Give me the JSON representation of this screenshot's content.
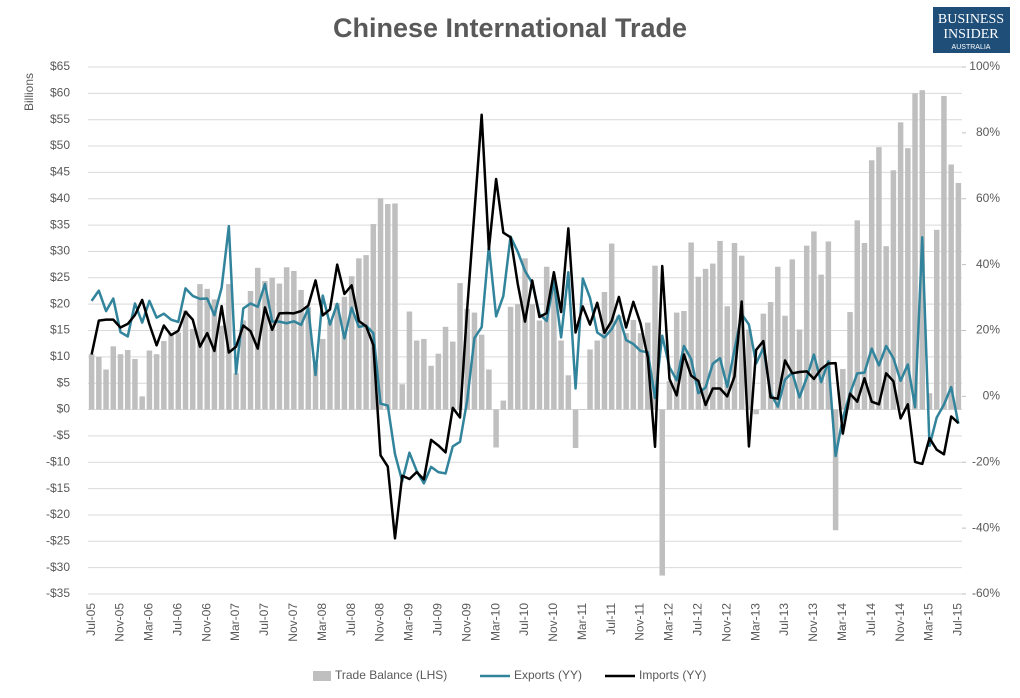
{
  "chart_data": {
    "type": "bar_line",
    "title": "Chinese International Trade",
    "brand": [
      "BUSINESS",
      "INSIDER",
      "AUSTRALIA"
    ],
    "y_label": "Billions",
    "categories": [
      "Jul-05",
      null,
      null,
      null,
      "Nov-05",
      null,
      null,
      null,
      "Mar-06",
      null,
      null,
      null,
      "Jul-06",
      null,
      null,
      null,
      "Nov-06",
      null,
      null,
      null,
      "Mar-07",
      null,
      null,
      null,
      "Jul-07",
      null,
      null,
      null,
      "Nov-07",
      null,
      null,
      null,
      "Mar-08",
      null,
      null,
      null,
      "Jul-08",
      null,
      null,
      null,
      "Nov-08",
      null,
      null,
      null,
      "Mar-09",
      null,
      null,
      null,
      "Jul-09",
      null,
      null,
      null,
      "Nov-09",
      null,
      null,
      null,
      "Mar-10",
      null,
      null,
      null,
      "Jul-10",
      null,
      null,
      null,
      "Nov-10",
      null,
      null,
      null,
      "Mar-11",
      null,
      null,
      null,
      "Jul-11",
      null,
      null,
      null,
      "Nov-11",
      null,
      null,
      null,
      "Mar-12",
      null,
      null,
      null,
      "Jul-12",
      null,
      null,
      null,
      "Nov-12",
      null,
      null,
      null,
      "Mar-13",
      null,
      null,
      null,
      "Jul-13",
      null,
      null,
      null,
      "Nov-13",
      null,
      null,
      null,
      "Mar-14",
      null,
      null,
      null,
      "Jul-14",
      null,
      null,
      null,
      "Nov-14",
      null,
      null,
      null,
      "Mar-15",
      null,
      null,
      null,
      "Jul-15"
    ],
    "series": [
      {
        "name": "Trade Balance (LHS)",
        "kind": "bar",
        "color": "#bfbfbf",
        "values": [
          10.5,
          10.0,
          7.6,
          12.0,
          10.5,
          11.3,
          9.6,
          2.5,
          11.2,
          10.5,
          13.0,
          14.5,
          14.6,
          18.8,
          15.3,
          23.8,
          22.9,
          20.9,
          15.9,
          23.8,
          6.9,
          16.9,
          22.5,
          26.9,
          24.4,
          25.0,
          23.9,
          27.0,
          26.3,
          22.7,
          19.5,
          8.6,
          13.4,
          16.7,
          20.2,
          21.4,
          25.3,
          28.7,
          29.3,
          35.2,
          40.1,
          39.0,
          39.1,
          4.8,
          18.6,
          13.1,
          13.4,
          8.3,
          10.6,
          15.7,
          12.9,
          24.0,
          19.1,
          18.4,
          14.2,
          7.6,
          -7.2,
          1.7,
          19.5,
          20.0,
          28.7,
          20.0,
          16.9,
          27.1,
          22.9,
          13.1,
          6.5,
          -7.3,
          0.1,
          11.4,
          13.1,
          22.3,
          31.5,
          17.8,
          14.5,
          17.0,
          14.5,
          16.5,
          27.3,
          -31.5,
          5.4,
          18.4,
          18.7,
          31.7,
          25.2,
          26.7,
          27.7,
          32.0,
          19.6,
          31.6,
          29.2,
          15.2,
          -0.9,
          18.2,
          20.4,
          27.1,
          17.8,
          28.5,
          15.2,
          31.1,
          33.8,
          25.6,
          31.9,
          -22.9,
          7.7,
          18.5,
          35.9,
          31.6,
          47.3,
          49.8,
          31.0,
          45.4,
          54.5,
          49.6,
          60.0,
          60.6,
          3.1,
          34.1,
          59.5,
          46.5,
          43.0
        ]
      },
      {
        "name": "Exports (YY)",
        "kind": "line",
        "axis": "y2",
        "color": "#31849b",
        "values": [
          29,
          32.1,
          25.9,
          29.7,
          19.5,
          18.2,
          28.2,
          22.4,
          29.0,
          23.9,
          25.1,
          23.3,
          22.6,
          32.8,
          30.5,
          29.6,
          29.7,
          24.6,
          33,
          51.7,
          6.9,
          26.7,
          28.2,
          27.2,
          34.1,
          22.7,
          22.7,
          22.2,
          22.8,
          21.7,
          26.7,
          6.5,
          30.6,
          21.8,
          28.1,
          17.6,
          26.9,
          21.1,
          21.5,
          19.2,
          -2.2,
          -2.8,
          -17.5,
          -25.7,
          -17.1,
          -22.6,
          -26.4,
          -21.4,
          -23.0,
          -23.4,
          -15.2,
          -13.8,
          -1.2,
          17.7,
          21.0,
          45.7,
          24.3,
          30.5,
          48.5,
          43.9,
          38.1,
          34.4,
          25.1,
          22.9,
          34.9,
          17.9,
          37.7,
          2.4,
          35.8,
          29.9,
          19.4,
          17.9,
          20.4,
          24.5,
          17.1,
          15.9,
          13.8,
          13.4,
          -0.5,
          18.4,
          8.9,
          4.9,
          15.3,
          11.3,
          1.0,
          2.7,
          9.9,
          11.6,
          2.9,
          14.1,
          25.0,
          21.8,
          10.0,
          14.7,
          1.0,
          -3.1,
          5.1,
          7.2,
          -0.3,
          5.6,
          12.7,
          4.3,
          10.6,
          -18.1,
          -6.6,
          0.9,
          7.0,
          7.2,
          14.5,
          9.4,
          15.3,
          11.6,
          4.7,
          9.7,
          -3.3,
          48.3,
          -15.0,
          -6.4,
          -2.5,
          2.8,
          -8.3
        ]
      },
      {
        "name": "Imports (YY)",
        "kind": "line",
        "axis": "y2",
        "color": "#000000",
        "values": [
          12.7,
          23.0,
          23.3,
          23.3,
          20.9,
          22.0,
          24.7,
          29.3,
          21.9,
          15.5,
          21.5,
          18.6,
          19.9,
          25.7,
          23.3,
          15.1,
          19.2,
          13.8,
          27.4,
          13.3,
          15.1,
          21.5,
          19.8,
          14.5,
          27.0,
          20.2,
          25.2,
          25.3,
          25.2,
          25.9,
          27.6,
          35.2,
          24.6,
          26.4,
          40.0,
          31.1,
          33.7,
          22.9,
          21.3,
          15.6,
          -17.9,
          -21.3,
          -43.1,
          -24.1,
          -25.1,
          -23.0,
          -25.2,
          -13.2,
          -14.9,
          -17.0,
          -3.5,
          -6.4,
          26.7,
          55.9,
          85.5,
          44.7,
          66.0,
          49.7,
          48.3,
          34.1,
          22.7,
          35.2,
          24.1,
          25.3,
          37.7,
          25.6,
          51.0,
          19.4,
          27.3,
          21.8,
          28.4,
          19.3,
          22.9,
          30.2,
          20.9,
          28.7,
          22.1,
          11.8,
          -15.3,
          39.6,
          5.3,
          0.3,
          12.7,
          6.3,
          4.7,
          -2.6,
          2.4,
          2.4,
          0.0,
          6.0,
          28.8,
          -15.2,
          14.1,
          16.8,
          -0.3,
          -0.7,
          10.9,
          7.0,
          7.4,
          7.6,
          5.3,
          8.3,
          10.0,
          10.1,
          -11.3,
          0.8,
          -1.6,
          5.5,
          -1.6,
          -2.4,
          7.0,
          4.6,
          -6.7,
          -2.4,
          -19.9,
          -20.5,
          -12.7,
          -16.2,
          -17.6,
          -6.1,
          -8.1
        ]
      }
    ],
    "ylim": [
      -35,
      65
    ],
    "yticks": [
      {
        "value": -35,
        "label": "-$35"
      },
      {
        "value": -30,
        "label": "-$30"
      },
      {
        "value": -25,
        "label": "-$25"
      },
      {
        "value": -20,
        "label": "-$20"
      },
      {
        "value": -15,
        "label": "-$15"
      },
      {
        "value": -10,
        "label": "-$10"
      },
      {
        "value": -5,
        "label": "-$5"
      },
      {
        "value": 0,
        "label": "$0"
      },
      {
        "value": 5,
        "label": "$5"
      },
      {
        "value": 10,
        "label": "$10"
      },
      {
        "value": 15,
        "label": "$15"
      },
      {
        "value": 20,
        "label": "$20"
      },
      {
        "value": 25,
        "label": "$25"
      },
      {
        "value": 30,
        "label": "$30"
      },
      {
        "value": 35,
        "label": "$35"
      },
      {
        "value": 40,
        "label": "$40"
      },
      {
        "value": 45,
        "label": "$45"
      },
      {
        "value": 50,
        "label": "$50"
      },
      {
        "value": 55,
        "label": "$55"
      },
      {
        "value": 60,
        "label": "$60"
      },
      {
        "value": 65,
        "label": "$65"
      }
    ],
    "y2lim": [
      -60,
      100
    ],
    "y2ticks": [
      {
        "value": -60,
        "label": "-60%"
      },
      {
        "value": -40,
        "label": "-40%"
      },
      {
        "value": -20,
        "label": "-20%"
      },
      {
        "value": 0,
        "label": "0%"
      },
      {
        "value": 20,
        "label": "20%"
      },
      {
        "value": 40,
        "label": "40%"
      },
      {
        "value": 60,
        "label": "60%"
      },
      {
        "value": 80,
        "label": "80%"
      },
      {
        "value": 100,
        "label": "100%"
      }
    ],
    "grid": true
  }
}
